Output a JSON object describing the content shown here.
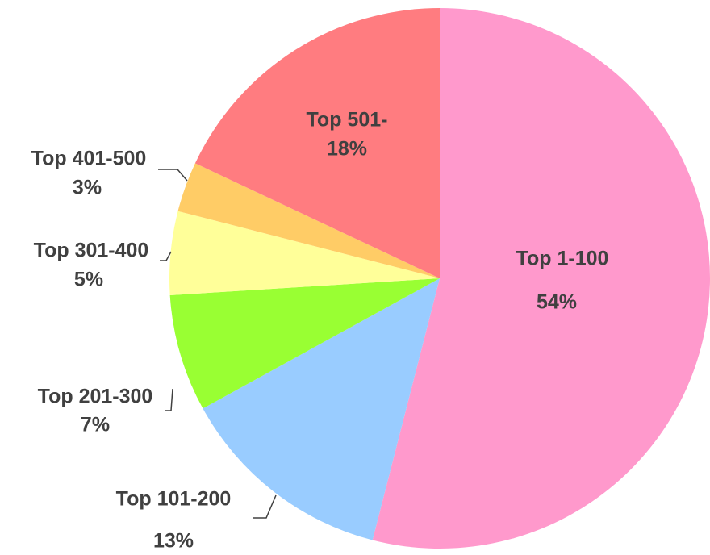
{
  "chart_data": {
    "type": "pie",
    "categories": [
      "Top 1-100",
      "Top 101-200",
      "Top 201-300",
      "Top 301-400",
      "Top 401-500",
      "Top 501-"
    ],
    "values": [
      54,
      13,
      7,
      5,
      3,
      18
    ],
    "value_labels": [
      "54%",
      "13%",
      "7%",
      "5%",
      "3%",
      "18%"
    ],
    "colors": [
      "#ff99cc",
      "#99ccff",
      "#99ff33",
      "#ffff99",
      "#ffcc66",
      "#ff7c80"
    ]
  }
}
